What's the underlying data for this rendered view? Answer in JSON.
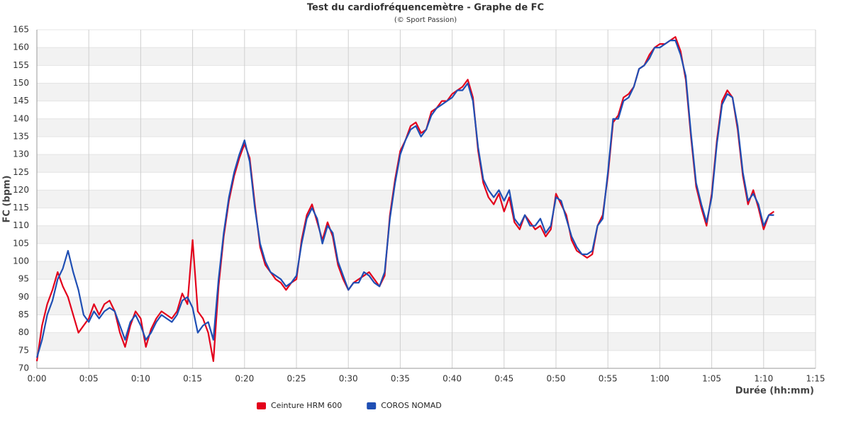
{
  "chart_data": {
    "type": "line",
    "title": "Test du cardiofréquencemètre - Graphe de FC",
    "subtitle": "(© Sport Passion)",
    "x_label": "Durée (hh:mm)",
    "y_label": "FC (bpm)",
    "x": [
      0,
      0.5,
      1,
      1.5,
      2,
      2.5,
      3,
      3.5,
      4,
      4.5,
      5,
      5.5,
      6,
      6.5,
      7,
      7.5,
      8,
      8.5,
      9,
      9.5,
      10,
      10.5,
      11,
      11.5,
      12,
      12.5,
      13,
      13.5,
      14,
      14.5,
      15,
      15.5,
      16,
      16.5,
      17,
      17.5,
      18,
      18.5,
      19,
      19.5,
      20,
      20.5,
      21,
      21.5,
      22,
      22.5,
      23,
      23.5,
      24,
      24.5,
      25,
      25.5,
      26,
      26.5,
      27,
      27.5,
      28,
      28.5,
      29,
      29.5,
      30,
      30.5,
      31,
      31.5,
      32,
      32.5,
      33,
      33.5,
      34,
      34.5,
      35,
      35.5,
      36,
      36.5,
      37,
      37.5,
      38,
      38.5,
      39,
      39.5,
      40,
      40.5,
      41,
      41.5,
      42,
      42.5,
      43,
      43.5,
      44,
      44.5,
      45,
      45.5,
      46,
      46.5,
      47,
      47.5,
      48,
      48.5,
      49,
      49.5,
      50,
      50.5,
      51,
      51.5,
      52,
      52.5,
      53,
      53.5,
      54,
      54.5,
      55,
      55.5,
      56,
      56.5,
      57,
      57.5,
      58,
      58.5,
      59,
      59.5,
      60,
      60.5,
      61,
      61.5,
      62,
      62.5,
      63,
      63.5,
      64,
      64.5,
      65,
      65.5,
      66,
      66.5,
      67,
      67.5,
      68,
      68.5,
      69,
      69.5,
      70,
      70.5,
      71
    ],
    "series": [
      {
        "name": "Ceinture HRM 600",
        "color": "#e3001b",
        "values": [
          72,
          82,
          88,
          92,
          97,
          93,
          90,
          85,
          80,
          82,
          84,
          88,
          85,
          88,
          89,
          86,
          80,
          76,
          82,
          86,
          84,
          76,
          81,
          84,
          86,
          85,
          84,
          86,
          91,
          88,
          106,
          86,
          84,
          80,
          72,
          93,
          107,
          117,
          124,
          129,
          133,
          129,
          116,
          104,
          99,
          97,
          95,
          94,
          92,
          94,
          95,
          106,
          113,
          116,
          111,
          106,
          111,
          107,
          99,
          95,
          92,
          94,
          95,
          96,
          97,
          95,
          93,
          96,
          113,
          123,
          131,
          134,
          138,
          139,
          136,
          137,
          142,
          143,
          145,
          145,
          147,
          148,
          149,
          151,
          146,
          131,
          122,
          118,
          116,
          119,
          114,
          118,
          111,
          109,
          113,
          111,
          109,
          110,
          107,
          109,
          119,
          116,
          113,
          106,
          103,
          102,
          101,
          102,
          110,
          113,
          124,
          139,
          141,
          146,
          147,
          149,
          154,
          155,
          158,
          160,
          161,
          161,
          162,
          163,
          159,
          151,
          135,
          121,
          115,
          110,
          119,
          134,
          145,
          148,
          146,
          137,
          124,
          116,
          120,
          115,
          109,
          113,
          114
        ]
      },
      {
        "name": "COROS NOMAD",
        "color": "#1f4fb4",
        "values": [
          73,
          78,
          85,
          89,
          95,
          98,
          103,
          97,
          92,
          85,
          83,
          86,
          84,
          86,
          87,
          86,
          82,
          78,
          83,
          85,
          82,
          78,
          80,
          83,
          85,
          84,
          83,
          85,
          89,
          90,
          87,
          80,
          82,
          83,
          78,
          95,
          108,
          118,
          125,
          130,
          134,
          128,
          115,
          105,
          100,
          97,
          96,
          95,
          93,
          94,
          96,
          105,
          112,
          115,
          112,
          105,
          110,
          108,
          100,
          96,
          92,
          94,
          94,
          97,
          96,
          94,
          93,
          97,
          112,
          122,
          130,
          134,
          137,
          138,
          135,
          137,
          141,
          143,
          144,
          145,
          146,
          148,
          148,
          150,
          145,
          132,
          123,
          120,
          118,
          120,
          117,
          120,
          112,
          110,
          113,
          110,
          110,
          112,
          108,
          110,
          118,
          117,
          112,
          107,
          104,
          102,
          102,
          103,
          110,
          112,
          125,
          140,
          140,
          145,
          146,
          149,
          154,
          155,
          157,
          160,
          160,
          161,
          162,
          162,
          158,
          152,
          136,
          122,
          116,
          111,
          118,
          133,
          144,
          147,
          146,
          138,
          125,
          117,
          119,
          116,
          110,
          113,
          113
        ]
      }
    ],
    "xlim": [
      0,
      75
    ],
    "xticks": [
      {
        "value": 0,
        "label": "0:00"
      },
      {
        "value": 5,
        "label": "0:05"
      },
      {
        "value": 10,
        "label": "0:10"
      },
      {
        "value": 15,
        "label": "0:15"
      },
      {
        "value": 20,
        "label": "0:20"
      },
      {
        "value": 25,
        "label": "0:25"
      },
      {
        "value": 30,
        "label": "0:30"
      },
      {
        "value": 35,
        "label": "0:35"
      },
      {
        "value": 40,
        "label": "0:40"
      },
      {
        "value": 45,
        "label": "0:45"
      },
      {
        "value": 50,
        "label": "0:50"
      },
      {
        "value": 55,
        "label": "0:55"
      },
      {
        "value": 60,
        "label": "1:00"
      },
      {
        "value": 65,
        "label": "1:05"
      },
      {
        "value": 70,
        "label": "1:10"
      },
      {
        "value": 75,
        "label": "1:15"
      }
    ],
    "ylim": [
      70,
      165
    ],
    "yticks": [
      70,
      75,
      80,
      85,
      90,
      95,
      100,
      105,
      110,
      115,
      120,
      125,
      130,
      135,
      140,
      145,
      150,
      155,
      160,
      165
    ],
    "grid": true
  }
}
